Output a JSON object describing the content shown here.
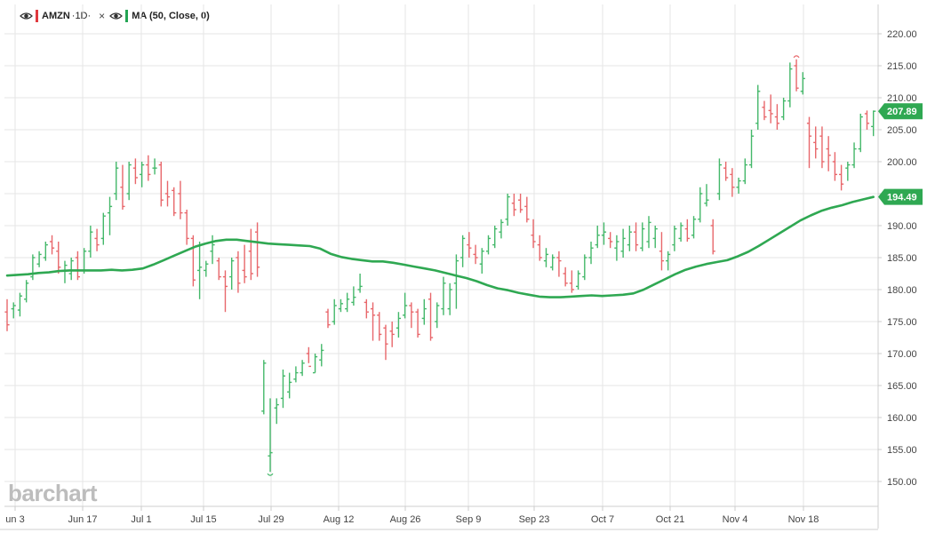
{
  "legend": {
    "symbol": "AMZN",
    "interval": "·1D·",
    "close_icon": "×",
    "study": "MA (50, Close, 0)",
    "eye_icon": "eye-icon",
    "symbol_color": "#e0393e",
    "study_color": "#23a453"
  },
  "watermark": "barchart",
  "colors": {
    "up": "#44b86a",
    "down": "#e8676b",
    "ma": "#2fa852",
    "grid": "#e5e5e5"
  },
  "chart_data": {
    "type": "ohlc",
    "ylim": [
      147,
      223
    ],
    "yticks": [
      "150.00",
      "155.00",
      "160.00",
      "165.00",
      "170.00",
      "175.00",
      "180.00",
      "185.00",
      "190.00",
      "195.00",
      "200.00",
      "205.00",
      "210.00",
      "215.00",
      "220.00"
    ],
    "xtick_labels": [
      "un 3",
      "Jun 17",
      "Jul 1",
      "Jul 15",
      "Jul 29",
      "Aug 12",
      "Aug 26",
      "Sep 9",
      "Sep 23",
      "Oct 7",
      "Oct 21",
      "Nov 4",
      "Nov 18"
    ],
    "last_price": {
      "label": "207.89",
      "value": 207.89,
      "color": "#2fa852"
    },
    "ma_last": {
      "label": "194.49",
      "value": 194.49,
      "color": "#2fa852"
    },
    "ma": [
      182.2,
      182.3,
      182.4,
      182.6,
      182.7,
      182.9,
      183.0,
      183.0,
      183.0,
      183.0,
      183.1,
      183.0,
      183.1,
      183.3,
      183.9,
      184.6,
      185.3,
      186.0,
      186.7,
      187.2,
      187.6,
      187.8,
      187.8,
      187.6,
      187.4,
      187.2,
      187.1,
      187.0,
      186.9,
      186.8,
      186.4,
      185.6,
      185.1,
      184.8,
      184.6,
      184.4,
      184.4,
      184.2,
      183.9,
      183.6,
      183.3,
      183.0,
      182.6,
      182.2,
      181.8,
      181.3,
      180.7,
      180.2,
      179.9,
      179.5,
      179.2,
      178.9,
      178.8,
      178.8,
      178.9,
      179.0,
      179.1,
      179.0,
      179.1,
      179.2,
      179.4,
      180.0,
      180.8,
      181.6,
      182.4,
      183.1,
      183.6,
      184.0,
      184.3,
      184.6,
      185.2,
      185.9,
      186.8,
      187.8,
      188.8,
      189.8,
      190.8,
      191.6,
      192.3,
      192.8,
      193.2,
      193.7,
      194.1,
      194.49
    ],
    "bars": [
      [
        176.5,
        178.5,
        173.5,
        174.5
      ],
      [
        177.0,
        178.0,
        175.5,
        177.5
      ],
      [
        176.8,
        179.5,
        175.8,
        179.0
      ],
      [
        178.5,
        181.5,
        178.0,
        181.0
      ],
      [
        182.0,
        185.5,
        181.5,
        185.0
      ],
      [
        184.0,
        186.0,
        183.5,
        185.5
      ],
      [
        185.0,
        187.5,
        184.5,
        187.0
      ],
      [
        187.5,
        188.5,
        185.5,
        186.5
      ],
      [
        186.0,
        187.5,
        182.5,
        183.5
      ],
      [
        183.0,
        184.5,
        181.0,
        183.8
      ],
      [
        182.5,
        185.0,
        181.5,
        184.5
      ],
      [
        185.0,
        186.0,
        181.5,
        182.0
      ],
      [
        183.0,
        186.5,
        182.5,
        186.0
      ],
      [
        186.0,
        190.0,
        185.0,
        189.0
      ],
      [
        188.0,
        189.5,
        186.0,
        187.0
      ],
      [
        188.0,
        192.0,
        187.0,
        191.5
      ],
      [
        192.0,
        194.5,
        188.5,
        193.0
      ],
      [
        195.0,
        200.0,
        194.0,
        199.0
      ],
      [
        196.0,
        199.5,
        192.5,
        193.0
      ],
      [
        195.0,
        200.0,
        194.0,
        199.5
      ],
      [
        199.0,
        200.5,
        196.5,
        197.5
      ],
      [
        198.0,
        200.0,
        196.0,
        199.5
      ],
      [
        199.5,
        201.0,
        197.0,
        198.0
      ],
      [
        199.0,
        200.5,
        198.0,
        199.0
      ],
      [
        199.5,
        200.0,
        193.0,
        194.0
      ],
      [
        195.0,
        197.0,
        193.0,
        194.5
      ],
      [
        195.5,
        196.0,
        191.5,
        192.0
      ],
      [
        195.0,
        197.0,
        191.0,
        192.0
      ],
      [
        192.0,
        192.5,
        187.0,
        188.0
      ],
      [
        188.0,
        188.5,
        180.5,
        181.5
      ],
      [
        183.0,
        187.5,
        178.5,
        183.5
      ],
      [
        183.0,
        184.5,
        182.0,
        184.0
      ],
      [
        186.0,
        188.5,
        184.0,
        187.0
      ],
      [
        184.5,
        185.0,
        181.5,
        182.0
      ],
      [
        182.0,
        183.0,
        176.5,
        180.5
      ],
      [
        182.0,
        185.0,
        180.0,
        184.5
      ],
      [
        185.0,
        186.0,
        179.5,
        181.0
      ],
      [
        183.0,
        187.0,
        181.0,
        182.0
      ],
      [
        186.0,
        189.5,
        181.5,
        182.5
      ],
      [
        189.0,
        190.5,
        182.0,
        183.5
      ],
      [
        161.0,
        169.0,
        160.5,
        168.5
      ],
      [
        154.0,
        163.0,
        151.5,
        154.5
      ],
      [
        161.5,
        163.0,
        159.0,
        162.0
      ],
      [
        163.0,
        167.5,
        161.5,
        166.5
      ],
      [
        164.0,
        167.0,
        163.0,
        165.5
      ],
      [
        166.0,
        168.0,
        165.5,
        167.0
      ],
      [
        167.0,
        169.0,
        166.5,
        168.5
      ],
      [
        170.0,
        171.0,
        168.5,
        168.0
      ],
      [
        167.0,
        170.0,
        167.0,
        169.5
      ],
      [
        169.0,
        171.5,
        168.0,
        170.5
      ],
      [
        176.5,
        177.0,
        174.0,
        174.5
      ],
      [
        175.0,
        178.5,
        174.5,
        177.5
      ],
      [
        177.0,
        178.5,
        176.5,
        177.8
      ],
      [
        177.0,
        179.5,
        176.5,
        178.5
      ],
      [
        178.0,
        180.5,
        177.5,
        178.8
      ],
      [
        180.0,
        182.5,
        179.5,
        180.5
      ],
      [
        178.0,
        178.5,
        175.5,
        176.5
      ],
      [
        177.0,
        178.0,
        172.0,
        176.0
      ],
      [
        176.0,
        176.5,
        172.0,
        173.0
      ],
      [
        174.0,
        174.5,
        169.0,
        171.5
      ],
      [
        173.5,
        175.0,
        171.0,
        173.0
      ],
      [
        174.0,
        176.5,
        172.5,
        175.5
      ],
      [
        176.0,
        179.5,
        175.5,
        177.5
      ],
      [
        177.5,
        178.0,
        174.0,
        176.5
      ],
      [
        176.5,
        177.0,
        172.5,
        173.0
      ],
      [
        175.5,
        178.5,
        174.5,
        177.0
      ],
      [
        178.5,
        179.5,
        172.0,
        172.5
      ],
      [
        175.0,
        178.0,
        174.0,
        177.5
      ],
      [
        177.0,
        182.0,
        176.0,
        181.0
      ],
      [
        177.0,
        181.0,
        176.0,
        180.0
      ],
      [
        181.0,
        185.5,
        177.0,
        184.5
      ],
      [
        185.0,
        188.5,
        183.5,
        188.0
      ],
      [
        187.0,
        189.0,
        185.0,
        186.5
      ],
      [
        185.5,
        187.0,
        184.0,
        185.0
      ],
      [
        184.0,
        186.5,
        182.5,
        186.0
      ],
      [
        186.0,
        188.5,
        185.5,
        188.0
      ],
      [
        187.0,
        190.0,
        186.5,
        189.5
      ],
      [
        189.0,
        191.0,
        188.0,
        190.5
      ],
      [
        191.0,
        195.0,
        190.0,
        194.5
      ],
      [
        193.5,
        195.0,
        191.5,
        192.5
      ],
      [
        194.0,
        195.0,
        192.0,
        192.5
      ],
      [
        193.0,
        194.5,
        190.5,
        191.0
      ],
      [
        188.5,
        191.0,
        186.5,
        187.5
      ],
      [
        187.0,
        188.5,
        184.5,
        185.0
      ],
      [
        184.5,
        186.5,
        183.5,
        185.5
      ],
      [
        183.5,
        185.5,
        183.0,
        185.0
      ],
      [
        185.0,
        186.0,
        182.0,
        184.5
      ],
      [
        182.5,
        183.5,
        180.5,
        181.0
      ],
      [
        181.0,
        183.0,
        179.5,
        180.0
      ],
      [
        180.5,
        183.0,
        180.0,
        182.5
      ],
      [
        182.0,
        185.5,
        181.5,
        185.0
      ],
      [
        185.0,
        187.5,
        184.0,
        186.5
      ],
      [
        187.0,
        190.0,
        186.5,
        188.5
      ],
      [
        188.5,
        190.5,
        187.0,
        189.0
      ],
      [
        188.0,
        189.0,
        186.5,
        187.5
      ],
      [
        186.5,
        188.5,
        184.5,
        187.5
      ],
      [
        186.0,
        189.5,
        185.0,
        188.0
      ],
      [
        187.0,
        190.0,
        186.0,
        189.0
      ],
      [
        189.0,
        190.5,
        186.0,
        187.0
      ],
      [
        186.5,
        190.5,
        186.0,
        189.5
      ],
      [
        187.5,
        191.5,
        186.5,
        190.5
      ],
      [
        188.0,
        190.0,
        186.5,
        189.5
      ],
      [
        186.0,
        189.0,
        183.0,
        184.5
      ],
      [
        184.5,
        186.0,
        183.0,
        185.5
      ],
      [
        187.0,
        190.0,
        186.0,
        189.5
      ],
      [
        188.0,
        190.5,
        187.5,
        190.0
      ],
      [
        189.5,
        191.0,
        187.5,
        188.0
      ],
      [
        188.5,
        191.5,
        188.0,
        191.0
      ],
      [
        191.0,
        196.0,
        190.5,
        195.0
      ],
      [
        193.5,
        196.5,
        193.0,
        194.0
      ],
      [
        190.0,
        191.0,
        185.5,
        186.0
      ],
      [
        195.0,
        200.5,
        194.0,
        199.5
      ],
      [
        199.0,
        200.0,
        197.0,
        197.5
      ],
      [
        198.0,
        199.0,
        194.5,
        196.0
      ],
      [
        196.0,
        197.5,
        195.0,
        197.0
      ],
      [
        197.0,
        200.5,
        196.5,
        199.5
      ],
      [
        199.5,
        205.0,
        199.0,
        204.0
      ],
      [
        206.0,
        212.0,
        205.0,
        211.0
      ],
      [
        208.5,
        209.5,
        206.5,
        207.0
      ],
      [
        208.0,
        210.5,
        206.0,
        207.5
      ],
      [
        207.0,
        209.0,
        205.0,
        206.0
      ],
      [
        207.0,
        210.0,
        206.5,
        209.5
      ],
      [
        209.5,
        215.5,
        208.5,
        214.5
      ],
      [
        215.0,
        216.0,
        211.0,
        211.5
      ],
      [
        211.0,
        214.0,
        210.5,
        213.0
      ],
      [
        206.0,
        207.0,
        199.0,
        204.0
      ],
      [
        203.0,
        205.5,
        200.5,
        202.0
      ],
      [
        204.0,
        205.5,
        199.0,
        200.0
      ],
      [
        202.0,
        204.0,
        198.5,
        201.0
      ],
      [
        200.0,
        201.5,
        197.0,
        198.0
      ],
      [
        198.0,
        199.5,
        195.5,
        196.5
      ],
      [
        199.0,
        200.0,
        197.0,
        199.5
      ],
      [
        199.5,
        203.0,
        199.0,
        202.0
      ],
      [
        202.0,
        207.5,
        201.5,
        207.0
      ],
      [
        207.5,
        208.0,
        205.0,
        206.0
      ],
      [
        205.5,
        208.0,
        204.0,
        207.89
      ]
    ]
  }
}
